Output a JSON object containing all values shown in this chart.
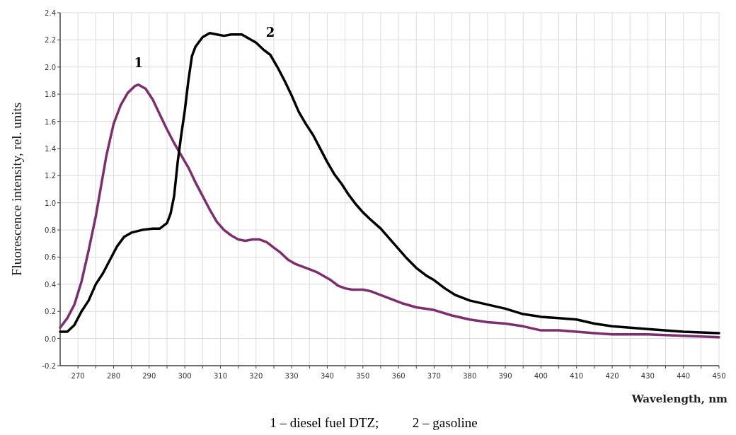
{
  "chart_data": {
    "type": "line",
    "xlabel": "Wavelength, nm",
    "ylabel": "Fluorescence intensity, rel. units",
    "annotations": [
      "1 – diesel fuel DTZ;          2 – gasoline"
    ],
    "xlim": [
      265,
      450
    ],
    "xticks": [
      270,
      {
        "value": 275,
        "label": null
      },
      280,
      {
        "value": 285,
        "label": null
      },
      290,
      {
        "value": 295,
        "label": null
      },
      300,
      {
        "value": 305,
        "label": null
      },
      310,
      {
        "value": 315,
        "label": null
      },
      320,
      {
        "value": 325,
        "label": null
      },
      330,
      {
        "value": 335,
        "label": null
      },
      340,
      {
        "value": 345,
        "label": null
      },
      350,
      {
        "value": 355,
        "label": null
      },
      360,
      {
        "value": 365,
        "label": null
      },
      370,
      {
        "value": 375,
        "label": null
      },
      380,
      {
        "value": 385,
        "label": null
      },
      390,
      {
        "value": 395,
        "label": null
      },
      400,
      {
        "value": 405,
        "label": null
      },
      410,
      {
        "value": 415,
        "label": null
      },
      420,
      {
        "value": 425,
        "label": null
      },
      430,
      {
        "value": 435,
        "label": null
      },
      440,
      {
        "value": 445,
        "label": null
      },
      450
    ],
    "ylim": [
      -0.2,
      2.4
    ],
    "yticks": [
      {
        "value": -0.2,
        "label": "-0.2"
      },
      {
        "value": 0,
        "label": "0.0"
      },
      0.2,
      0.4,
      0.6,
      0.8,
      {
        "value": 1,
        "label": "1.0"
      },
      1.2,
      1.4,
      1.6,
      1.8,
      {
        "value": 2,
        "label": "2.0"
      },
      2.2,
      2.4
    ],
    "grid": true,
    "marker": "none",
    "line_style": "solid",
    "series": [
      {
        "name": "1",
        "color": "#7e2d6e",
        "x": [
          265,
          267,
          269,
          271,
          273,
          275,
          276,
          278,
          280,
          282,
          284,
          286,
          287,
          289,
          291,
          293,
          295,
          297,
          299,
          301,
          303,
          305,
          307,
          309,
          311,
          313,
          315,
          317,
          319,
          321,
          323,
          325,
          327,
          329,
          331,
          333,
          335,
          337,
          339,
          341,
          343,
          345,
          347,
          350,
          352,
          355,
          358,
          361,
          365,
          370,
          375,
          380,
          385,
          390,
          395,
          400,
          405,
          410,
          415,
          420,
          430,
          440,
          450
        ],
        "values": [
          0.08,
          0.15,
          0.25,
          0.42,
          0.65,
          0.9,
          1.05,
          1.35,
          1.58,
          1.72,
          1.81,
          1.86,
          1.87,
          1.84,
          1.76,
          1.65,
          1.54,
          1.44,
          1.35,
          1.26,
          1.15,
          1.05,
          0.95,
          0.86,
          0.8,
          0.76,
          0.73,
          0.72,
          0.73,
          0.73,
          0.71,
          0.67,
          0.63,
          0.58,
          0.55,
          0.53,
          0.51,
          0.49,
          0.46,
          0.43,
          0.39,
          0.37,
          0.36,
          0.36,
          0.35,
          0.32,
          0.29,
          0.26,
          0.23,
          0.21,
          0.17,
          0.14,
          0.12,
          0.11,
          0.09,
          0.06,
          0.06,
          0.05,
          0.04,
          0.03,
          0.03,
          0.02,
          0.01
        ]
      },
      {
        "name": "2",
        "color": "#000000",
        "x": [
          265,
          267,
          269,
          271,
          273,
          275,
          277,
          279,
          281,
          283,
          285,
          288,
          291,
          293,
          295,
          296,
          297,
          298,
          299,
          300,
          301,
          302,
          303,
          305,
          307,
          309,
          311,
          313,
          316,
          318,
          320,
          322,
          324,
          326,
          328,
          330,
          332,
          334,
          336,
          338,
          340,
          342,
          344,
          346,
          348,
          350,
          352,
          355,
          358,
          360,
          362,
          365,
          368,
          370,
          373,
          376,
          380,
          385,
          390,
          395,
          400,
          405,
          410,
          415,
          420,
          425,
          430,
          440,
          450
        ],
        "values": [
          0.05,
          0.05,
          0.1,
          0.2,
          0.28,
          0.4,
          0.48,
          0.58,
          0.68,
          0.75,
          0.78,
          0.8,
          0.81,
          0.81,
          0.85,
          0.92,
          1.05,
          1.3,
          1.5,
          1.68,
          1.9,
          2.08,
          2.15,
          2.22,
          2.25,
          2.24,
          2.23,
          2.24,
          2.24,
          2.21,
          2.18,
          2.13,
          2.09,
          2.0,
          1.9,
          1.79,
          1.67,
          1.58,
          1.5,
          1.4,
          1.3,
          1.21,
          1.14,
          1.06,
          0.99,
          0.93,
          0.88,
          0.81,
          0.72,
          0.66,
          0.6,
          0.52,
          0.46,
          0.43,
          0.37,
          0.32,
          0.28,
          0.25,
          0.22,
          0.18,
          0.16,
          0.15,
          0.14,
          0.11,
          0.09,
          0.08,
          0.07,
          0.05,
          0.04
        ]
      }
    ]
  }
}
